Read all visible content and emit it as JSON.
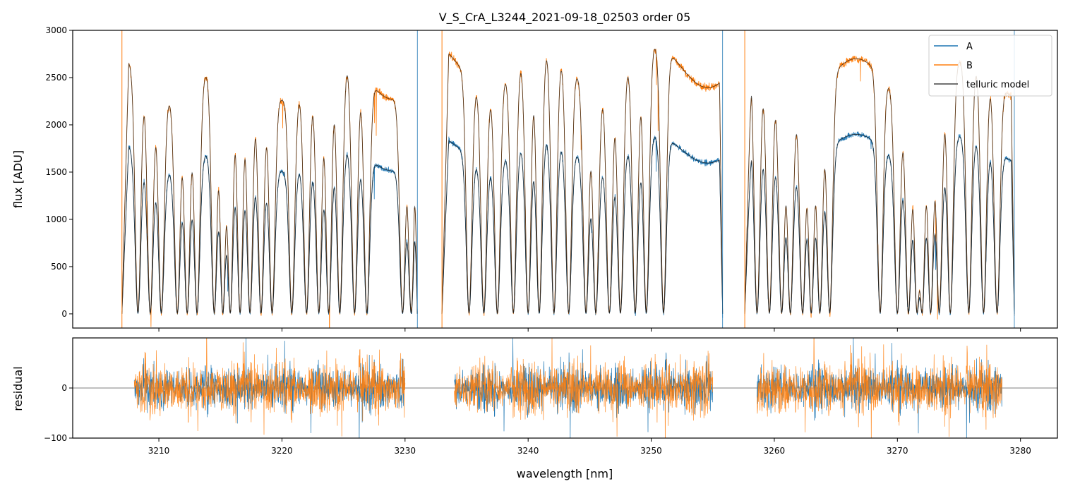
{
  "chart_data": {
    "type": "line",
    "title": "V_S_CrA_L3244_2021-09-18_02503  order 05",
    "xlabel": "wavelength [nm]",
    "xlim": [
      3203,
      3283
    ],
    "x_ticks": [
      3210,
      3220,
      3230,
      3240,
      3250,
      3260,
      3270,
      3280
    ],
    "panels": [
      {
        "name": "flux",
        "ylabel": "flux [ADU]",
        "ylim": [
          -150,
          3000
        ],
        "y_ticks": [
          0,
          500,
          1000,
          1500,
          2000,
          2500,
          3000
        ],
        "legend": [
          "A",
          "B",
          "telluric model"
        ],
        "legend_position": "top-right",
        "segments": [
          {
            "x_start": 3207.0,
            "x_end": 3231.0,
            "continuum_A": 1800,
            "continuum_B": 2700
          },
          {
            "x_start": 3233.0,
            "x_end": 3255.8,
            "continuum_A": 1900,
            "continuum_B": 2850
          },
          {
            "x_start": 3257.6,
            "x_end": 3279.5,
            "continuum_A": 1900,
            "continuum_B": 2700
          }
        ],
        "absorption_lines_nm": [
          3208.3,
          3209.3,
          3210.2,
          3211.5,
          3212.3,
          3213.1,
          3214.5,
          3215.2,
          3215.8,
          3216.6,
          3217.4,
          3218.3,
          3219.2,
          3220.8,
          3222.0,
          3223.0,
          3223.8,
          3224.7,
          3225.9,
          3226.9,
          3229.8,
          3230.5,
          3235.2,
          3236.4,
          3237.5,
          3238.8,
          3240.0,
          3240.9,
          3242.1,
          3243.3,
          3244.7,
          3245.5,
          3246.6,
          3247.5,
          3248.7,
          3249.6,
          3251.0,
          3258.6,
          3259.6,
          3260.6,
          3261.3,
          3262.3,
          3263.0,
          3263.7,
          3264.5,
          3268.6,
          3270.0,
          3270.9,
          3271.6,
          3272.0,
          3272.7,
          3273.4,
          3274.3,
          3275.8,
          3277.0,
          3278.1
        ],
        "series": [
          {
            "name": "A",
            "color": "#1f77b4"
          },
          {
            "name": "B",
            "color": "#ff7f0e"
          },
          {
            "name": "telluric model",
            "color": "#444444"
          }
        ]
      },
      {
        "name": "residual",
        "ylabel": "residual",
        "ylim": [
          -100,
          100
        ],
        "y_ticks": [
          -100,
          0
        ],
        "zero_line": true,
        "segments": [
          {
            "x_start": 3208.0,
            "x_end": 3230.0
          },
          {
            "x_start": 3234.0,
            "x_end": 3255.0
          },
          {
            "x_start": 3258.6,
            "x_end": 3278.5
          }
        ],
        "series": [
          {
            "name": "A",
            "color": "#1f77b4"
          },
          {
            "name": "B",
            "color": "#ff7f0e"
          }
        ]
      }
    ]
  }
}
